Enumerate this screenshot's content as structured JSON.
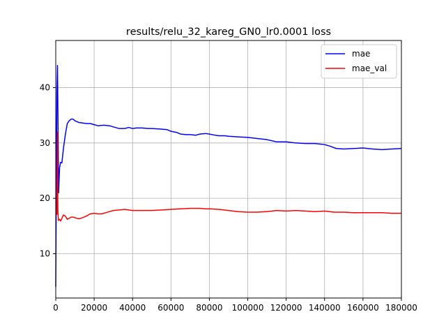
{
  "chart_data": {
    "type": "line",
    "title": "results/relu_32_kareg_GN0_lr0.0001 loss",
    "xlabel": "",
    "ylabel": "",
    "xlim": [
      0,
      180000
    ],
    "ylim": [
      2,
      48.5
    ],
    "x_ticks": [
      0,
      20000,
      40000,
      60000,
      80000,
      100000,
      120000,
      140000,
      160000,
      180000
    ],
    "x_tick_labels": [
      "0",
      "20000",
      "40000",
      "60000",
      "80000",
      "100000",
      "120000",
      "140000",
      "160000",
      "180000"
    ],
    "y_ticks": [
      10,
      20,
      30,
      40
    ],
    "y_tick_labels": [
      "10",
      "20",
      "30",
      "40"
    ],
    "grid": true,
    "legend_position": "top-right",
    "series": [
      {
        "name": "mae",
        "color": "#0000ff",
        "points": [
          [
            0,
            4
          ],
          [
            300,
            23
          ],
          [
            600,
            39
          ],
          [
            900,
            44
          ],
          [
            1200,
            33
          ],
          [
            1500,
            21
          ],
          [
            2000,
            25.5
          ],
          [
            2500,
            26.5
          ],
          [
            3200,
            26.4
          ],
          [
            4000,
            29
          ],
          [
            5000,
            31.5
          ],
          [
            6000,
            33.5
          ],
          [
            7000,
            34
          ],
          [
            8000,
            34.3
          ],
          [
            9000,
            34.3
          ],
          [
            10000,
            34
          ],
          [
            12000,
            33.7
          ],
          [
            14000,
            33.6
          ],
          [
            16000,
            33.5
          ],
          [
            18000,
            33.5
          ],
          [
            20000,
            33.3
          ],
          [
            22000,
            33.1
          ],
          [
            25000,
            33.2
          ],
          [
            28000,
            33.1
          ],
          [
            30000,
            32.9
          ],
          [
            33000,
            32.6
          ],
          [
            36000,
            32.6
          ],
          [
            38000,
            32.8
          ],
          [
            40000,
            32.6
          ],
          [
            42000,
            32.7
          ],
          [
            45000,
            32.7
          ],
          [
            48000,
            32.6
          ],
          [
            50000,
            32.6
          ],
          [
            55000,
            32.5
          ],
          [
            58000,
            32.4
          ],
          [
            60000,
            32.1
          ],
          [
            63000,
            31.9
          ],
          [
            65000,
            31.6
          ],
          [
            68000,
            31.5
          ],
          [
            70000,
            31.5
          ],
          [
            73000,
            31.4
          ],
          [
            75000,
            31.6
          ],
          [
            78000,
            31.7
          ],
          [
            80000,
            31.6
          ],
          [
            83000,
            31.4
          ],
          [
            85000,
            31.3
          ],
          [
            88000,
            31.3
          ],
          [
            90000,
            31.2
          ],
          [
            95000,
            31.1
          ],
          [
            100000,
            31
          ],
          [
            105000,
            30.8
          ],
          [
            110000,
            30.6
          ],
          [
            115000,
            30.2
          ],
          [
            120000,
            30.2
          ],
          [
            125000,
            30
          ],
          [
            130000,
            29.9
          ],
          [
            135000,
            29.9
          ],
          [
            140000,
            29.7
          ],
          [
            143000,
            29.4
          ],
          [
            146000,
            29
          ],
          [
            150000,
            28.9
          ],
          [
            155000,
            29
          ],
          [
            160000,
            29.1
          ],
          [
            165000,
            28.9
          ],
          [
            170000,
            28.8
          ],
          [
            175000,
            28.9
          ],
          [
            180000,
            29
          ]
        ]
      },
      {
        "name": "mae_val",
        "color": "#ff0000",
        "points": [
          [
            600,
            17
          ],
          [
            900,
            32
          ],
          [
            1100,
            18
          ],
          [
            1400,
            16
          ],
          [
            2000,
            16.2
          ],
          [
            2600,
            15.9
          ],
          [
            3200,
            16.4
          ],
          [
            4000,
            17
          ],
          [
            5000,
            16.8
          ],
          [
            6000,
            16.2
          ],
          [
            7000,
            16.4
          ],
          [
            8000,
            16.6
          ],
          [
            9000,
            16.6
          ],
          [
            10000,
            16.5
          ],
          [
            12000,
            16.3
          ],
          [
            14000,
            16.5
          ],
          [
            16000,
            16.8
          ],
          [
            18000,
            17.2
          ],
          [
            20000,
            17.3
          ],
          [
            22000,
            17.2
          ],
          [
            24000,
            17.2
          ],
          [
            26000,
            17.4
          ],
          [
            28000,
            17.6
          ],
          [
            30000,
            17.8
          ],
          [
            33000,
            17.9
          ],
          [
            36000,
            18
          ],
          [
            38000,
            17.9
          ],
          [
            40000,
            17.8
          ],
          [
            45000,
            17.8
          ],
          [
            50000,
            17.8
          ],
          [
            55000,
            17.9
          ],
          [
            60000,
            18
          ],
          [
            65000,
            18.1
          ],
          [
            70000,
            18.2
          ],
          [
            75000,
            18.2
          ],
          [
            78000,
            18.1
          ],
          [
            80000,
            18.1
          ],
          [
            85000,
            18
          ],
          [
            90000,
            17.8
          ],
          [
            95000,
            17.6
          ],
          [
            100000,
            17.5
          ],
          [
            105000,
            17.5
          ],
          [
            110000,
            17.6
          ],
          [
            115000,
            17.8
          ],
          [
            120000,
            17.7
          ],
          [
            125000,
            17.8
          ],
          [
            130000,
            17.7
          ],
          [
            135000,
            17.6
          ],
          [
            140000,
            17.7
          ],
          [
            145000,
            17.5
          ],
          [
            150000,
            17.5
          ],
          [
            155000,
            17.4
          ],
          [
            160000,
            17.4
          ],
          [
            165000,
            17.4
          ],
          [
            170000,
            17.4
          ],
          [
            175000,
            17.3
          ],
          [
            180000,
            17.3
          ]
        ]
      }
    ]
  }
}
